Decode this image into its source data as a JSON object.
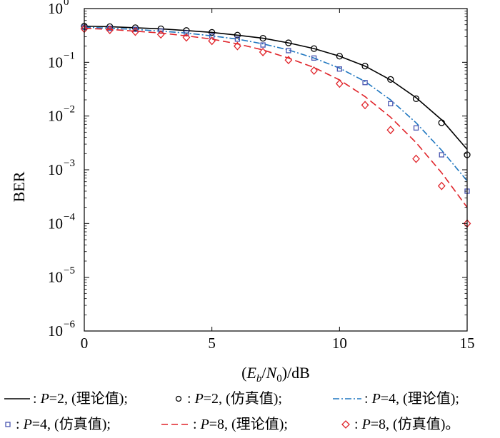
{
  "chart_data": {
    "type": "line",
    "xlabel": "(E_b/N_0)/dB",
    "ylabel": "BER",
    "xlim": [
      0,
      15
    ],
    "ylim": [
      1e-06,
      1
    ],
    "yscale": "log",
    "grid": false,
    "x_ticks": [
      "0",
      "5",
      "10",
      "15"
    ],
    "y_ticks": [
      {
        "base": "10",
        "exp": "0"
      },
      {
        "base": "10",
        "exp": "−1"
      },
      {
        "base": "10",
        "exp": "−2"
      },
      {
        "base": "10",
        "exp": "−3"
      },
      {
        "base": "10",
        "exp": "−4"
      },
      {
        "base": "10",
        "exp": "−5"
      },
      {
        "base": "10",
        "exp": "−6"
      }
    ],
    "series": [
      {
        "legend": "P=2, (理论值)",
        "kind": "line",
        "style": "solid",
        "color": "#000000",
        "x": [
          0,
          1,
          2,
          3,
          4,
          5,
          6,
          7,
          8,
          9,
          10,
          11,
          12,
          13,
          14,
          15
        ],
        "y": [
          0.47,
          0.46,
          0.44,
          0.42,
          0.39,
          0.36,
          0.32,
          0.28,
          0.23,
          0.18,
          0.13,
          0.085,
          0.047,
          0.022,
          0.0085,
          0.0024
        ]
      },
      {
        "legend": "P=2, (仿真值)",
        "kind": "markers",
        "marker": "circle",
        "color": "#000000",
        "x": [
          0,
          1,
          2,
          3,
          4,
          5,
          6,
          7,
          8,
          9,
          10,
          11,
          12,
          13,
          14,
          15
        ],
        "y": [
          0.47,
          0.46,
          0.44,
          0.42,
          0.39,
          0.36,
          0.32,
          0.28,
          0.23,
          0.18,
          0.13,
          0.085,
          0.048,
          0.021,
          0.0075,
          0.0019
        ]
      },
      {
        "legend": "P=4, (理论值)",
        "kind": "line",
        "style": "dashdot",
        "color": "#1f77c0",
        "x": [
          0,
          1,
          2,
          3,
          4,
          5,
          6,
          7,
          8,
          9,
          10,
          11,
          12,
          13,
          14,
          15
        ],
        "y": [
          0.45,
          0.43,
          0.41,
          0.38,
          0.35,
          0.31,
          0.27,
          0.22,
          0.17,
          0.12,
          0.078,
          0.044,
          0.02,
          0.0075,
          0.0023,
          0.00062
        ]
      },
      {
        "legend": "P=4, (仿真值)",
        "kind": "markers",
        "marker": "square",
        "color": "#4a56b0",
        "x": [
          0,
          1,
          2,
          3,
          4,
          5,
          6,
          7,
          8,
          9,
          10,
          11,
          12,
          13,
          14,
          15
        ],
        "y": [
          0.45,
          0.43,
          0.41,
          0.38,
          0.35,
          0.31,
          0.27,
          0.21,
          0.165,
          0.12,
          0.075,
          0.042,
          0.017,
          0.006,
          0.0019,
          0.0004
        ]
      },
      {
        "legend": "P=8, (理论值)",
        "kind": "line",
        "style": "dashed",
        "color": "#e0242a",
        "x": [
          0,
          1,
          2,
          3,
          4,
          5,
          6,
          7,
          8,
          9,
          10,
          11,
          12,
          13,
          14,
          15
        ],
        "y": [
          0.43,
          0.41,
          0.38,
          0.35,
          0.31,
          0.27,
          0.22,
          0.17,
          0.12,
          0.08,
          0.047,
          0.023,
          0.0095,
          0.0032,
          0.00088,
          0.0002
        ]
      },
      {
        "legend": "P=8, (仿真值)",
        "kind": "markers",
        "marker": "diamond",
        "color": "#e0242a",
        "x": [
          0,
          1,
          2,
          3,
          4,
          5,
          6,
          7,
          8,
          9,
          10,
          11,
          12,
          13,
          14,
          15
        ],
        "y": [
          0.42,
          0.4,
          0.37,
          0.33,
          0.29,
          0.25,
          0.2,
          0.155,
          0.11,
          0.07,
          0.04,
          0.016,
          0.0055,
          0.0016,
          0.0005,
          0.0001
        ]
      }
    ]
  },
  "legend": [
    {
      "label_sep": ": ",
      "var": "P",
      "value": "=2, (理论值);"
    },
    {
      "label_sep": ": ",
      "var": "P",
      "value": "=2, (仿真值);"
    },
    {
      "label_sep": ": ",
      "var": "P",
      "value": "=4, (理论值);"
    },
    {
      "label_sep": ": ",
      "var": "P",
      "value": "=4, (仿真值);"
    },
    {
      "label_sep": ": ",
      "var": "P",
      "value": "=8, (理论值);"
    },
    {
      "label_sep": ": ",
      "var": "P",
      "value": "=8, (仿真值)。"
    }
  ]
}
